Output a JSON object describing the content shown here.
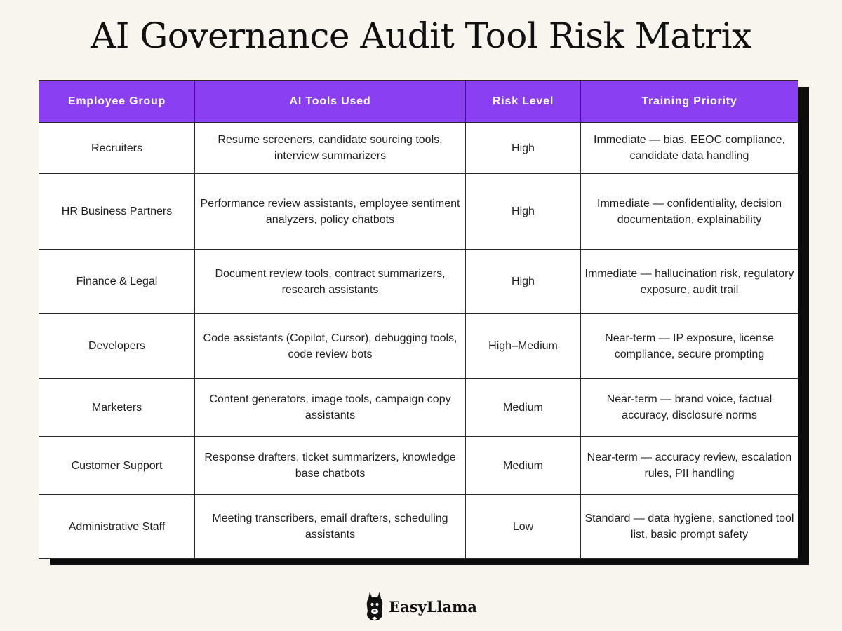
{
  "title": "AI Governance Audit Tool Risk Matrix",
  "table": {
    "headers": [
      "Employee Group",
      "AI Tools Used",
      "Risk Level",
      "Training Priority"
    ],
    "rows": [
      {
        "group": "Recruiters",
        "tools": "Resume screeners, candidate sourcing tools, interview summarizers",
        "risk": "High",
        "priority": "Immediate — bias, EEOC compliance, candidate data handling"
      },
      {
        "group": "HR Business Partners",
        "tools": "Performance review assistants, employee sentiment analyzers, policy chatbots",
        "risk": "High",
        "priority": "Immediate — confidentiality, decision documentation, explainability"
      },
      {
        "group": "Finance & Legal",
        "tools": "Document review tools, contract summarizers, research assistants",
        "risk": "High",
        "priority": "Immediate — hallucination risk, regulatory exposure, audit trail"
      },
      {
        "group": "Developers",
        "tools": "Code assistants (Copilot, Cursor), debugging tools, code review bots",
        "risk": "High–Medium",
        "priority": "Near-term — IP exposure, license compliance, secure prompting"
      },
      {
        "group": "Marketers",
        "tools": "Content generators, image tools, campaign copy assistants",
        "risk": "Medium",
        "priority": "Near-term — brand voice, factual accuracy, disclosure norms"
      },
      {
        "group": "Customer Support",
        "tools": "Response drafters, ticket summarizers, knowledge base chatbots",
        "risk": "Medium",
        "priority": "Near-term — accuracy review, escalation rules, PII handling"
      },
      {
        "group": "Administrative Staff",
        "tools": "Meeting transcribers, email drafters, scheduling assistants",
        "risk": "Low",
        "priority": "Standard — data hygiene, sanctioned tool list, basic prompt safety"
      }
    ]
  },
  "footer": {
    "logo_text": "EasyLlama",
    "logo_icon": "llama-icon"
  },
  "colors": {
    "header_bg": "#8a3ff0",
    "page_bg": "#f8f4ee",
    "shadow": "#0d0d0d"
  }
}
